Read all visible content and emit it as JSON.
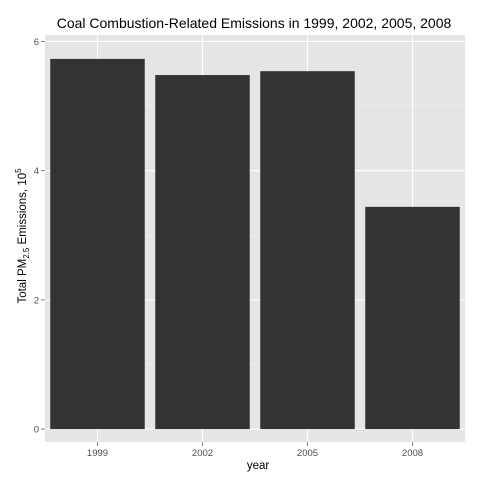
{
  "chart_data": {
    "type": "bar",
    "title": "Coal Combustion-Related Emissions in 1999, 2002, 2005, 2008",
    "xlabel": "year",
    "ylabel": {
      "prefix": "Total PM",
      "subscript": "2.5",
      "middle": " Emissions, 10",
      "superscript": "5"
    },
    "categories": [
      "1999",
      "2002",
      "2005",
      "2008"
    ],
    "values": [
      5.73,
      5.48,
      5.54,
      3.44
    ],
    "ylim": [
      -0.2,
      6.1
    ],
    "yticks": [
      0,
      2,
      4,
      6
    ],
    "ytick_labels": [
      "0",
      "2",
      "4",
      "6"
    ],
    "grid": true,
    "colors": {
      "panel": "#e5e5e5",
      "grid_major": "#ffffff",
      "grid_minor": "#f2f2f2",
      "bar": "#333333",
      "tick": "#7f7f7f"
    }
  }
}
